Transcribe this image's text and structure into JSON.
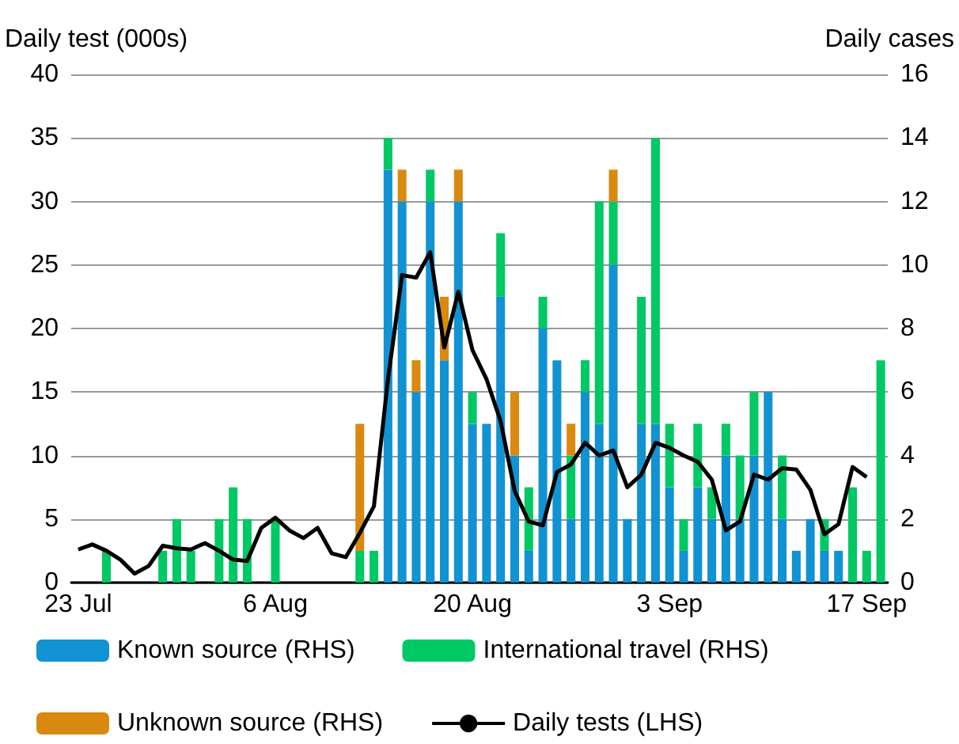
{
  "chart_data": {
    "type": "bar",
    "stacked": true,
    "ylabel": "Daily test (000s)",
    "y2label": "Daily cases",
    "categories": [
      "23 Jul",
      null,
      null,
      null,
      null,
      null,
      null,
      null,
      null,
      null,
      null,
      null,
      null,
      null,
      "6 Aug",
      null,
      null,
      null,
      null,
      null,
      null,
      null,
      null,
      null,
      null,
      null,
      null,
      null,
      "20 Aug",
      null,
      null,
      null,
      null,
      null,
      null,
      null,
      null,
      null,
      null,
      null,
      null,
      null,
      "3 Sep",
      null,
      null,
      null,
      null,
      null,
      null,
      null,
      null,
      null,
      null,
      null,
      null,
      null,
      "17 Sep",
      null
    ],
    "series": [
      {
        "name": "Known source (RHS)",
        "color": "#1192d2",
        "axis": "y2",
        "values": [
          0,
          0,
          0,
          0,
          0,
          0,
          0,
          0,
          0,
          0,
          0,
          0,
          0,
          0,
          0,
          0,
          0,
          0,
          0,
          0,
          0,
          0,
          13,
          12,
          6,
          12,
          7,
          12,
          5,
          5,
          9,
          4,
          1,
          8,
          7,
          2,
          6,
          5,
          10,
          2,
          5,
          5,
          3,
          1,
          3,
          2,
          4,
          2,
          4,
          6,
          2,
          1,
          2,
          1,
          1,
          0,
          0,
          0
        ]
      },
      {
        "name": "International travel (RHS)",
        "color": "#00c864",
        "axis": "y2",
        "values": [
          0,
          0,
          1,
          0,
          0,
          0,
          1,
          2,
          1,
          0,
          2,
          3,
          2,
          0,
          2,
          0,
          0,
          0,
          0,
          0,
          1,
          1,
          1,
          0,
          0,
          1,
          0,
          0,
          1,
          0,
          2,
          0,
          2,
          1,
          0,
          2,
          1,
          7,
          2,
          0,
          4,
          9,
          2,
          1,
          2,
          1,
          1,
          2,
          2,
          0,
          2,
          0,
          0,
          1,
          0,
          3,
          1,
          7
        ]
      },
      {
        "name": "Unknown source (RHS)",
        "color": "#d9890f",
        "axis": "y2",
        "values": [
          0,
          0,
          0,
          0,
          0,
          0,
          0,
          0,
          0,
          0,
          0,
          0,
          0,
          0,
          0,
          0,
          0,
          0,
          0,
          0,
          4,
          0,
          0,
          1,
          1,
          0,
          2,
          1,
          0,
          0,
          0,
          2,
          0,
          0,
          0,
          1,
          0,
          0,
          1,
          0,
          0,
          0,
          0,
          0,
          0,
          0,
          0,
          0,
          0,
          0,
          0,
          0,
          0,
          0,
          0,
          0,
          0,
          0
        ]
      },
      {
        "name": "Daily tests (LHS)",
        "type": "line",
        "color": "#000000",
        "axis": "y",
        "values": [
          2.6,
          3.0,
          2.5,
          1.8,
          0.7,
          1.3,
          2.9,
          2.7,
          2.6,
          3.1,
          2.5,
          1.8,
          1.7,
          4.3,
          5.1,
          4.1,
          3.5,
          4.3,
          2.3,
          2.0,
          3.9,
          6.0,
          16.0,
          24.2,
          24.0,
          26.0,
          18.5,
          22.9,
          18.3,
          16.0,
          12.7,
          7.2,
          4.8,
          4.5,
          8.7,
          9.3,
          11.0,
          10.0,
          10.4,
          7.5,
          8.5,
          11.0,
          10.6,
          10.0,
          9.5,
          8.1,
          4.1,
          4.8,
          8.5,
          8.1,
          9.0,
          8.9,
          7.3,
          3.8,
          4.6,
          9.1,
          8.3,
          null
        ]
      }
    ],
    "ylim": [
      0,
      40
    ],
    "yticks": [
      0,
      5,
      10,
      15,
      20,
      25,
      30,
      35,
      40
    ],
    "y2lim": [
      0,
      16
    ],
    "y2ticks": [
      0,
      2,
      4,
      6,
      8,
      10,
      12,
      14,
      16
    ],
    "grid": "y",
    "legend": "bottom"
  }
}
